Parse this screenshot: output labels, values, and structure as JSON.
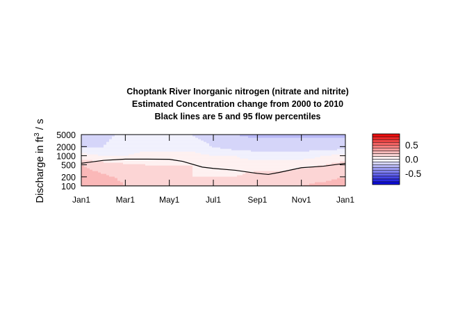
{
  "chart_data": {
    "type": "heatmap",
    "title": [
      "Choptank River  Inorganic nitrogen (nitrate and nitrite)",
      "Estimated Concentration change from 2000 to 2010",
      "Black lines are 5 and 95 flow percentiles"
    ],
    "ylabel": {
      "text": "Discharge in ft",
      "sup": "3",
      "unit": " / s"
    },
    "y_scale": "log",
    "ylim": [
      100,
      5000
    ],
    "y_ticks": [
      100,
      200,
      500,
      1000,
      2000,
      5000
    ],
    "y_tick_labels": [
      "100",
      "200",
      "500",
      "1000",
      "2000",
      "5000"
    ],
    "xlim": [
      0,
      12
    ],
    "x_ticks": [
      0,
      2,
      4,
      6,
      8,
      10,
      12
    ],
    "x_tick_labels": [
      "Jan1",
      "Mar1",
      "May1",
      "Jul1",
      "Sep1",
      "Nov1",
      "Jan1"
    ],
    "months": [
      0,
      1,
      2,
      3,
      4,
      5,
      6,
      7,
      8,
      9,
      10,
      11,
      12
    ],
    "discharge_levels": [
      100,
      200,
      500,
      1000,
      2000,
      5000
    ],
    "z": [
      [
        0.3,
        0.25,
        0.2,
        0.05,
        -0.1,
        -0.2
      ],
      [
        0.25,
        0.22,
        0.15,
        0.0,
        -0.1,
        -0.12
      ],
      [
        0.2,
        0.18,
        0.12,
        0.0,
        -0.05,
        -0.08
      ],
      [
        0.15,
        0.15,
        0.1,
        0.05,
        -0.05,
        -0.08
      ],
      [
        0.1,
        0.12,
        0.1,
        0.05,
        -0.05,
        -0.08
      ],
      [
        0.1,
        0.1,
        0.1,
        0.05,
        -0.05,
        -0.1
      ],
      [
        0.1,
        0.1,
        0.05,
        0.0,
        -0.1,
        -0.15
      ],
      [
        0.1,
        0.1,
        0.05,
        0.0,
        -0.15,
        -0.2
      ],
      [
        0.15,
        0.15,
        0.05,
        -0.05,
        -0.15,
        -0.22
      ],
      [
        0.15,
        0.15,
        0.05,
        -0.05,
        -0.15,
        -0.22
      ],
      [
        0.2,
        0.15,
        0.08,
        -0.05,
        -0.15,
        -0.22
      ],
      [
        0.25,
        0.15,
        0.1,
        0.0,
        -0.15,
        -0.22
      ],
      [
        0.3,
        0.2,
        0.15,
        0.05,
        -0.15,
        -0.22
      ]
    ],
    "flow_percentile_lines": [
      {
        "name": "95",
        "x": [
          0,
          1,
          2,
          3,
          4,
          4.6,
          5.5,
          6,
          7,
          8,
          8.5,
          9,
          10,
          11,
          12
        ],
        "y": [
          560,
          700,
          770,
          770,
          760,
          650,
          420,
          380,
          330,
          260,
          240,
          280,
          400,
          450,
          560
        ]
      },
      {
        "name": "5",
        "x": [
          0,
          12
        ],
        "y": [
          100,
          100
        ]
      }
    ],
    "colorbar": {
      "range": [
        -0.9,
        0.9
      ],
      "ticks": [
        0.5,
        0.0,
        -0.5
      ],
      "tick_labels": [
        "0.5",
        "0.0",
        "-0.5"
      ],
      "n_levels": 18
    },
    "colors": {
      "negative": "#0000dd",
      "neutral": "#ffffff",
      "positive": "#ee0000",
      "line": "#000000"
    }
  }
}
